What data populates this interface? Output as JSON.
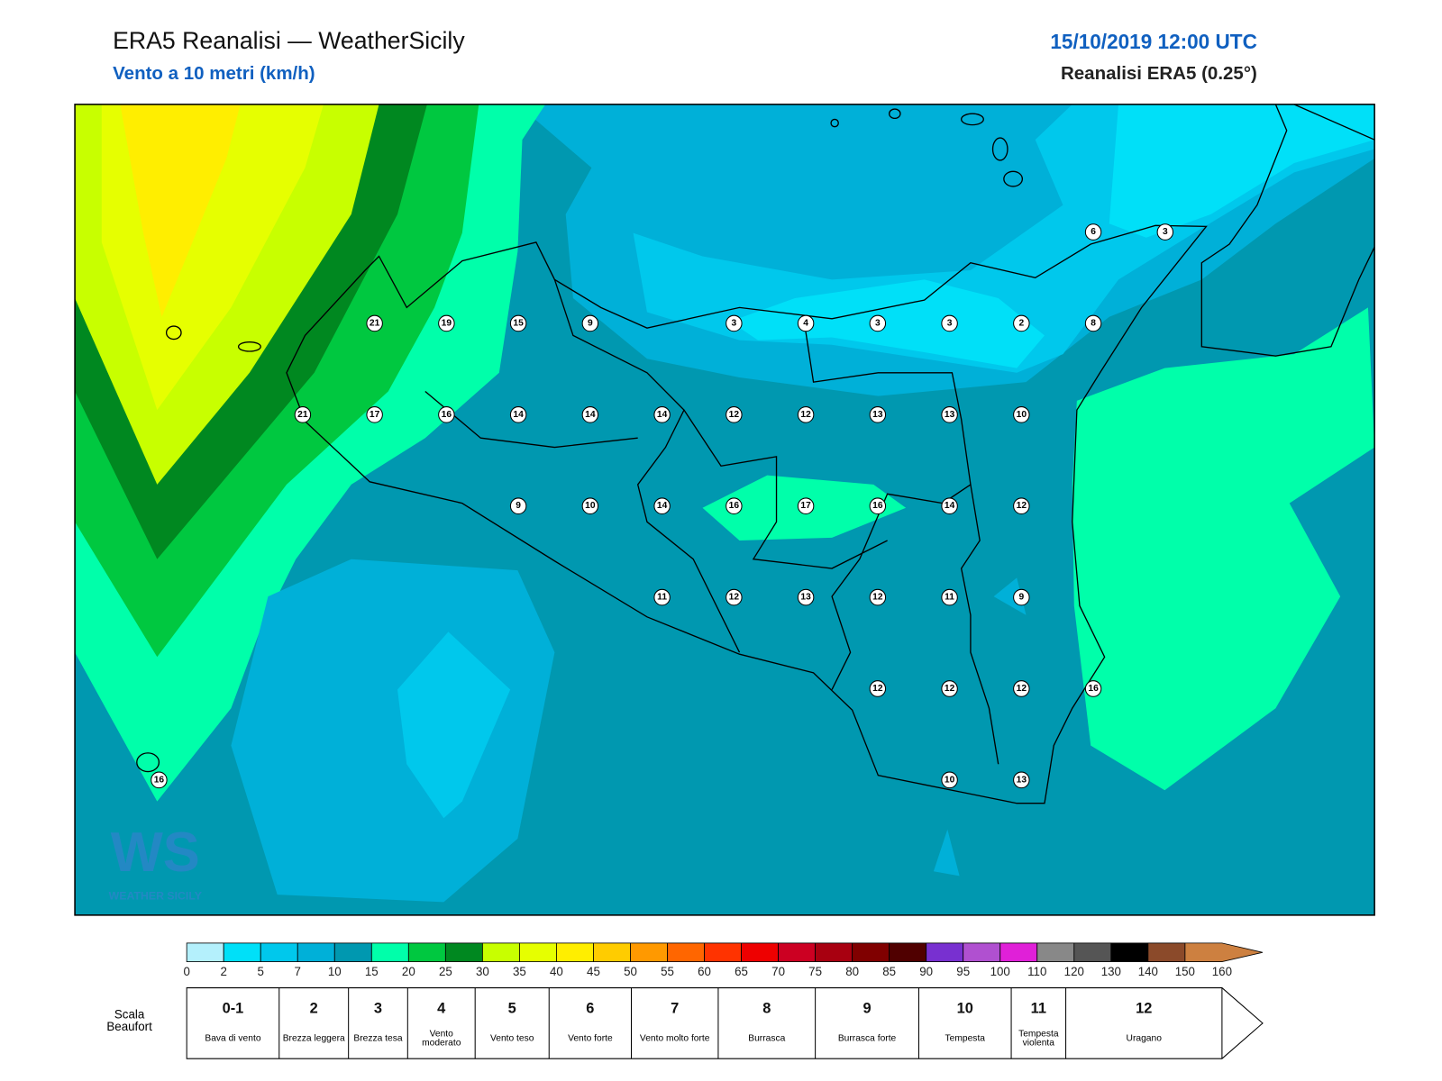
{
  "header": {
    "title": "ERA5 Reanalisi — WeatherSicily",
    "subtitle": "Vento a 10 metri (km/h)",
    "datetime": "15/10/2019 12:00 UTC",
    "source": "Reanalisi ERA5 (0.25°)"
  },
  "stations": [
    6,
    3,
    21,
    19,
    15,
    9,
    3,
    4,
    3,
    3,
    2,
    8,
    21,
    17,
    16,
    14,
    14,
    14,
    12,
    12,
    13,
    13,
    10,
    9,
    10,
    14,
    16,
    17,
    16,
    14,
    12,
    11,
    12,
    13,
    12,
    11,
    9,
    12,
    12,
    12,
    16,
    16,
    10,
    13
  ],
  "logo": {
    "mark": "WS",
    "text": "WEATHER SICILY"
  },
  "colorbar": {
    "ticks": [
      0,
      2,
      5,
      7,
      10,
      15,
      20,
      25,
      30,
      35,
      40,
      45,
      50,
      55,
      60,
      65,
      70,
      75,
      80,
      85,
      90,
      95,
      100,
      110,
      120,
      130,
      140,
      150,
      160
    ],
    "colors": [
      "#b4f0fc",
      "#00e0f8",
      "#00c8ec",
      "#00b0d8",
      "#0098b0",
      "#00ffaa",
      "#00c840",
      "#008820",
      "#c8ff00",
      "#e6ff00",
      "#ffee00",
      "#ffcc00",
      "#ff9900",
      "#ff6600",
      "#ff3300",
      "#ee0000",
      "#cc0022",
      "#a80010",
      "#800000",
      "#500000",
      "#7830d0",
      "#b050d0",
      "#e020d8",
      "#888888",
      "#555555",
      "#000000",
      "#8b4a2a",
      "#cd8040"
    ]
  },
  "beaufort": {
    "label": "Scala Beaufort",
    "classes": [
      {
        "force": "0-1",
        "name": "Bava di vento"
      },
      {
        "force": "2",
        "name": "Brezza leggera"
      },
      {
        "force": "3",
        "name": "Brezza tesa"
      },
      {
        "force": "4",
        "name": "Vento moderato"
      },
      {
        "force": "5",
        "name": "Vento teso"
      },
      {
        "force": "6",
        "name": "Vento forte"
      },
      {
        "force": "7",
        "name": "Vento molto forte"
      },
      {
        "force": "8",
        "name": "Burrasca"
      },
      {
        "force": "9",
        "name": "Burrasca forte"
      },
      {
        "force": "10",
        "name": "Tempesta"
      },
      {
        "force": "11",
        "name": "Tempesta violenta"
      },
      {
        "force": "12",
        "name": "Uragano"
      }
    ]
  }
}
